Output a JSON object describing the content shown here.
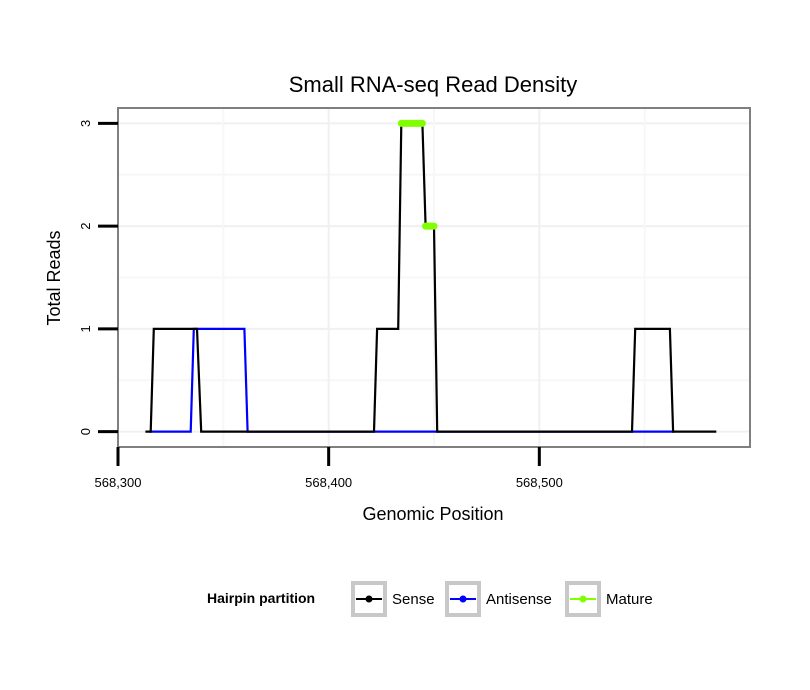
{
  "chart_data": {
    "type": "line",
    "title": "Small RNA-seq Read Density",
    "xlabel": "Genomic Position",
    "ylabel": "Total Reads",
    "xlim": [
      568300,
      568600
    ],
    "ylim": [
      -0.15,
      3.15
    ],
    "x_ticks": [
      {
        "value": 568300,
        "label": "568,300"
      },
      {
        "value": 568400,
        "label": "568,400"
      },
      {
        "value": 568500,
        "label": "568,500"
      }
    ],
    "y_ticks": [
      {
        "value": 0,
        "label": "0"
      },
      {
        "value": 1,
        "label": "1"
      },
      {
        "value": 2,
        "label": "2"
      },
      {
        "value": 3,
        "label": "3"
      }
    ],
    "legend": {
      "title": "Hairpin partition",
      "position": "bottom",
      "entries": [
        {
          "name": "Sense",
          "color": "#000000"
        },
        {
          "name": "Antisense",
          "color": "#0000ff"
        },
        {
          "name": "Mature",
          "color": "#7fff00"
        }
      ]
    },
    "series": [
      {
        "name": "Antisense",
        "color": "#0000ff",
        "x": [
          568315,
          568334.5,
          568336,
          568360,
          568361.5,
          568422,
          568424,
          568450,
          568452,
          568544,
          568546,
          568562,
          568564
        ],
        "y": [
          0,
          0,
          1,
          1,
          0,
          0,
          0,
          0,
          0,
          0,
          0,
          0,
          0
        ]
      },
      {
        "name": "Sense",
        "color": "#000000",
        "x": [
          568313,
          568315.5,
          568317,
          568337.5,
          568339.5,
          568421.5,
          568423,
          568433,
          568434.5,
          568444.5,
          568446,
          568450,
          568451.5,
          568544,
          568545.5,
          568562,
          568563.5,
          568584
        ],
        "y": [
          0,
          0,
          1,
          1,
          0,
          0,
          1,
          1,
          3,
          3,
          2,
          2,
          0,
          0,
          1,
          1,
          0,
          0
        ]
      },
      {
        "name": "Mature",
        "color": "#7fff00",
        "segments": [
          {
            "x": [
              568434.5,
              568444.5
            ],
            "y": [
              3,
              3
            ]
          },
          {
            "x": [
              568446,
              568450
            ],
            "y": [
              2,
              2
            ]
          }
        ]
      }
    ]
  }
}
